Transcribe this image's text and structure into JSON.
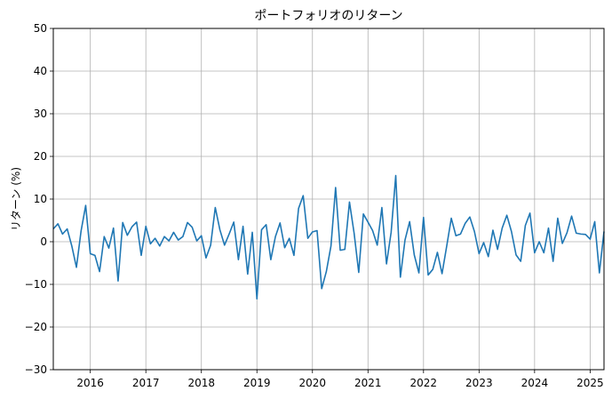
{
  "chart_data": {
    "type": "line",
    "title": "ポートフォリオのリターン",
    "xlabel": "",
    "ylabel": "リターン (%)",
    "ylim": [
      -30,
      50
    ],
    "xlim": [
      "2015-05",
      "2025-04"
    ],
    "yticks": [
      -30,
      -20,
      -10,
      0,
      10,
      20,
      30,
      40,
      50
    ],
    "ytick_labels": [
      "−30",
      "−20",
      "−10",
      "0",
      "10",
      "20",
      "30",
      "40",
      "50"
    ],
    "xticks": [
      "2016-01",
      "2017-01",
      "2018-01",
      "2019-01",
      "2020-01",
      "2021-01",
      "2022-01",
      "2023-01",
      "2024-01",
      "2025-01"
    ],
    "xtick_labels": [
      "2016",
      "2017",
      "2018",
      "2019",
      "2020",
      "2021",
      "2022",
      "2023",
      "2024",
      "2025"
    ],
    "grid": true,
    "legend": "none",
    "line_color": "#1f77b4",
    "x": [
      "2015-05",
      "2015-06",
      "2015-07",
      "2015-08",
      "2015-09",
      "2015-10",
      "2015-11",
      "2015-12",
      "2016-01",
      "2016-02",
      "2016-03",
      "2016-04",
      "2016-05",
      "2016-06",
      "2016-07",
      "2016-08",
      "2016-09",
      "2016-10",
      "2016-11",
      "2016-12",
      "2017-01",
      "2017-02",
      "2017-03",
      "2017-04",
      "2017-05",
      "2017-06",
      "2017-07",
      "2017-08",
      "2017-09",
      "2017-10",
      "2017-11",
      "2017-12",
      "2018-01",
      "2018-02",
      "2018-03",
      "2018-04",
      "2018-05",
      "2018-06",
      "2018-07",
      "2018-08",
      "2018-09",
      "2018-10",
      "2018-11",
      "2018-12",
      "2019-01",
      "2019-02",
      "2019-03",
      "2019-04",
      "2019-05",
      "2019-06",
      "2019-07",
      "2019-08",
      "2019-09",
      "2019-10",
      "2019-11",
      "2019-12",
      "2020-01",
      "2020-02",
      "2020-03",
      "2020-04",
      "2020-05",
      "2020-06",
      "2020-07",
      "2020-08",
      "2020-09",
      "2020-10",
      "2020-11",
      "2020-12",
      "2021-01",
      "2021-02",
      "2021-03",
      "2021-04",
      "2021-05",
      "2021-06",
      "2021-07",
      "2021-08",
      "2021-09",
      "2021-10",
      "2021-11",
      "2021-12",
      "2022-01",
      "2022-02",
      "2022-03",
      "2022-04",
      "2022-05",
      "2022-06",
      "2022-07",
      "2022-08",
      "2022-09",
      "2022-10",
      "2022-11",
      "2022-12",
      "2023-01",
      "2023-02",
      "2023-03",
      "2023-04",
      "2023-05",
      "2023-06",
      "2023-07",
      "2023-08",
      "2023-09",
      "2023-10",
      "2023-11",
      "2023-12",
      "2024-01",
      "2024-02",
      "2024-03",
      "2024-04",
      "2024-05",
      "2024-06",
      "2024-07",
      "2024-08",
      "2024-09",
      "2024-10",
      "2024-11",
      "2024-12",
      "2025-01",
      "2025-02",
      "2025-03",
      "2025-04"
    ],
    "series": [
      {
        "name": "",
        "values": [
          3,
          4.2,
          1.8,
          3,
          -1,
          -6,
          2.5,
          8.5,
          -2.8,
          -3.2,
          -7,
          1.2,
          -1.5,
          3.2,
          -9.2,
          4.5,
          1.5,
          3.5,
          4.6,
          -3.2,
          3.6,
          -0.5,
          0.8,
          -1,
          1.2,
          0.2,
          2.2,
          0.4,
          1.2,
          4.5,
          3.4,
          0.2,
          1.4,
          -3.8,
          -0.8,
          8,
          2.8,
          -0.8,
          1.8,
          4.6,
          -4.2,
          3.6,
          -7.6,
          2.2,
          -13.4,
          2.8,
          4,
          -4.2,
          1.2,
          4.4,
          -1.4,
          0.8,
          -3.2,
          7.8,
          10.8,
          0.8,
          2.3,
          2.6,
          -11,
          -7,
          -1,
          12.7,
          -2,
          -1.8,
          9.3,
          2,
          -7.2,
          6.5,
          4.6,
          2.6,
          -0.8,
          8,
          -5.2,
          2.2,
          15.5,
          -8.3,
          0.4,
          4.7,
          -3.1,
          -7.3,
          5.7,
          -7.8,
          -6.5,
          -2.5,
          -7.5,
          -1.1,
          5.5,
          1.4,
          1.8,
          4.3,
          5.8,
          2.4,
          -2.8,
          -0.2,
          -3.5,
          2.7,
          -1.8,
          3.2,
          6.2,
          2.4,
          -3.1,
          -4.6,
          3.8,
          6.7,
          -2.6,
          0,
          -2.6,
          3.2,
          -4.6,
          5.5,
          -0.4,
          2.1,
          6,
          2,
          1.8,
          1.7,
          0.6,
          4.7,
          -7.3,
          2.4
        ]
      }
    ]
  }
}
